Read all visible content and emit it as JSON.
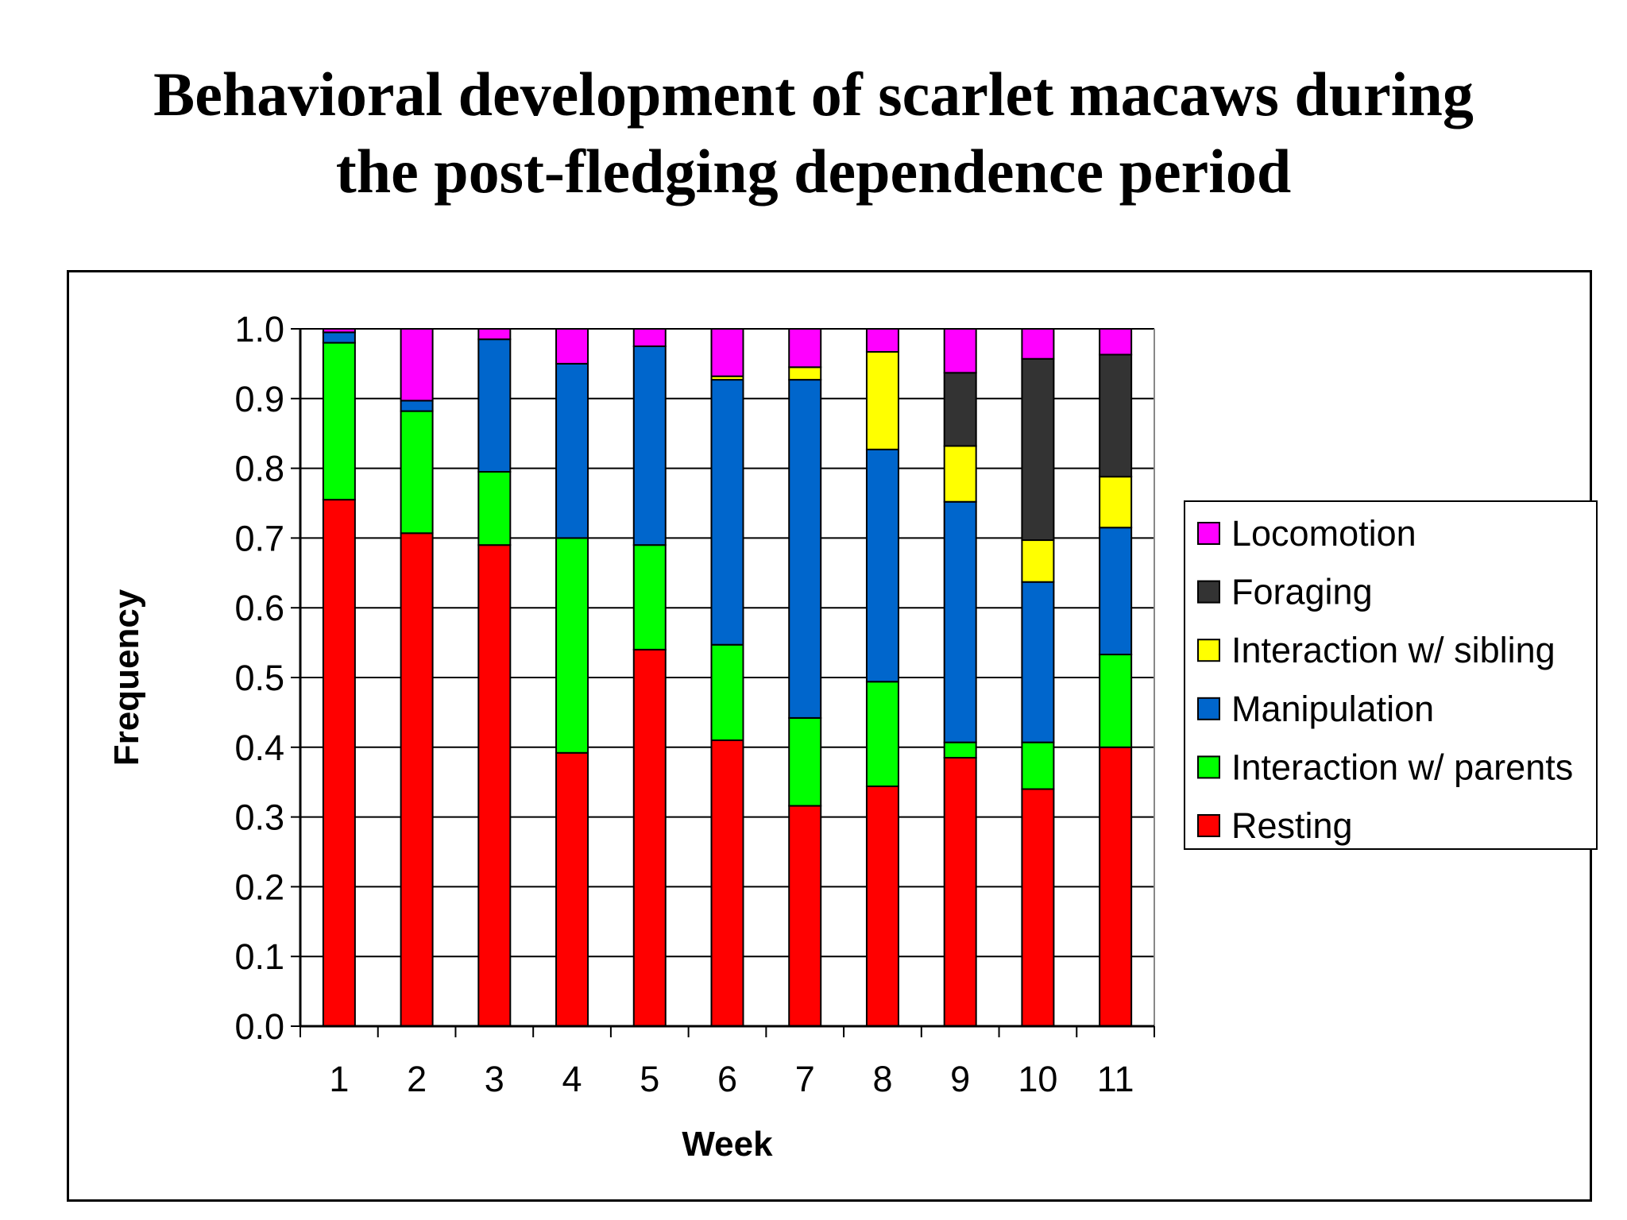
{
  "title_line1": "Behavioral development of scarlet macaws during",
  "title_line2": "the post-fledging dependence period",
  "chart_data": {
    "type": "bar",
    "stacked": true,
    "categories": [
      "1",
      "2",
      "3",
      "4",
      "5",
      "6",
      "7",
      "8",
      "9",
      "10",
      "11"
    ],
    "xlabel": "Week",
    "ylabel": "Frequency",
    "ylim": [
      0,
      1.0
    ],
    "yticks": [
      "0.0",
      "0.1",
      "0.2",
      "0.3",
      "0.4",
      "0.5",
      "0.6",
      "0.7",
      "0.8",
      "0.9",
      "1.0"
    ],
    "grid": true,
    "legend_position": "right",
    "series": [
      {
        "name": "Resting",
        "color": "#ff0000",
        "values": [
          0.755,
          0.707,
          0.69,
          0.392,
          0.54,
          0.41,
          0.316,
          0.344,
          0.385,
          0.34,
          0.4
        ]
      },
      {
        "name": "Interaction w/ parents",
        "color": "#00ff00",
        "values": [
          0.225,
          0.175,
          0.105,
          0.308,
          0.15,
          0.137,
          0.126,
          0.15,
          0.022,
          0.067,
          0.133
        ]
      },
      {
        "name": "Manipulation",
        "color": "#0066cc",
        "values": [
          0.015,
          0.015,
          0.19,
          0.25,
          0.285,
          0.38,
          0.485,
          0.333,
          0.345,
          0.23,
          0.182
        ]
      },
      {
        "name": "Interaction w/ sibling",
        "color": "#ffff00",
        "values": [
          0,
          0,
          0,
          0,
          0,
          0.005,
          0.018,
          0.14,
          0.08,
          0.06,
          0.073
        ]
      },
      {
        "name": "Foraging",
        "color": "#333333",
        "values": [
          0,
          0,
          0,
          0,
          0,
          0,
          0,
          0,
          0.105,
          0.26,
          0.175
        ]
      },
      {
        "name": "Locomotion",
        "color": "#ff00ff",
        "values": [
          0.005,
          0.103,
          0.015,
          0.05,
          0.025,
          0.068,
          0.055,
          0.033,
          0.063,
          0.043,
          0.037
        ]
      }
    ],
    "legend_order": [
      "Locomotion",
      "Foraging",
      "Interaction w/ sibling",
      "Manipulation",
      "Interaction w/ parents",
      "Resting"
    ]
  }
}
